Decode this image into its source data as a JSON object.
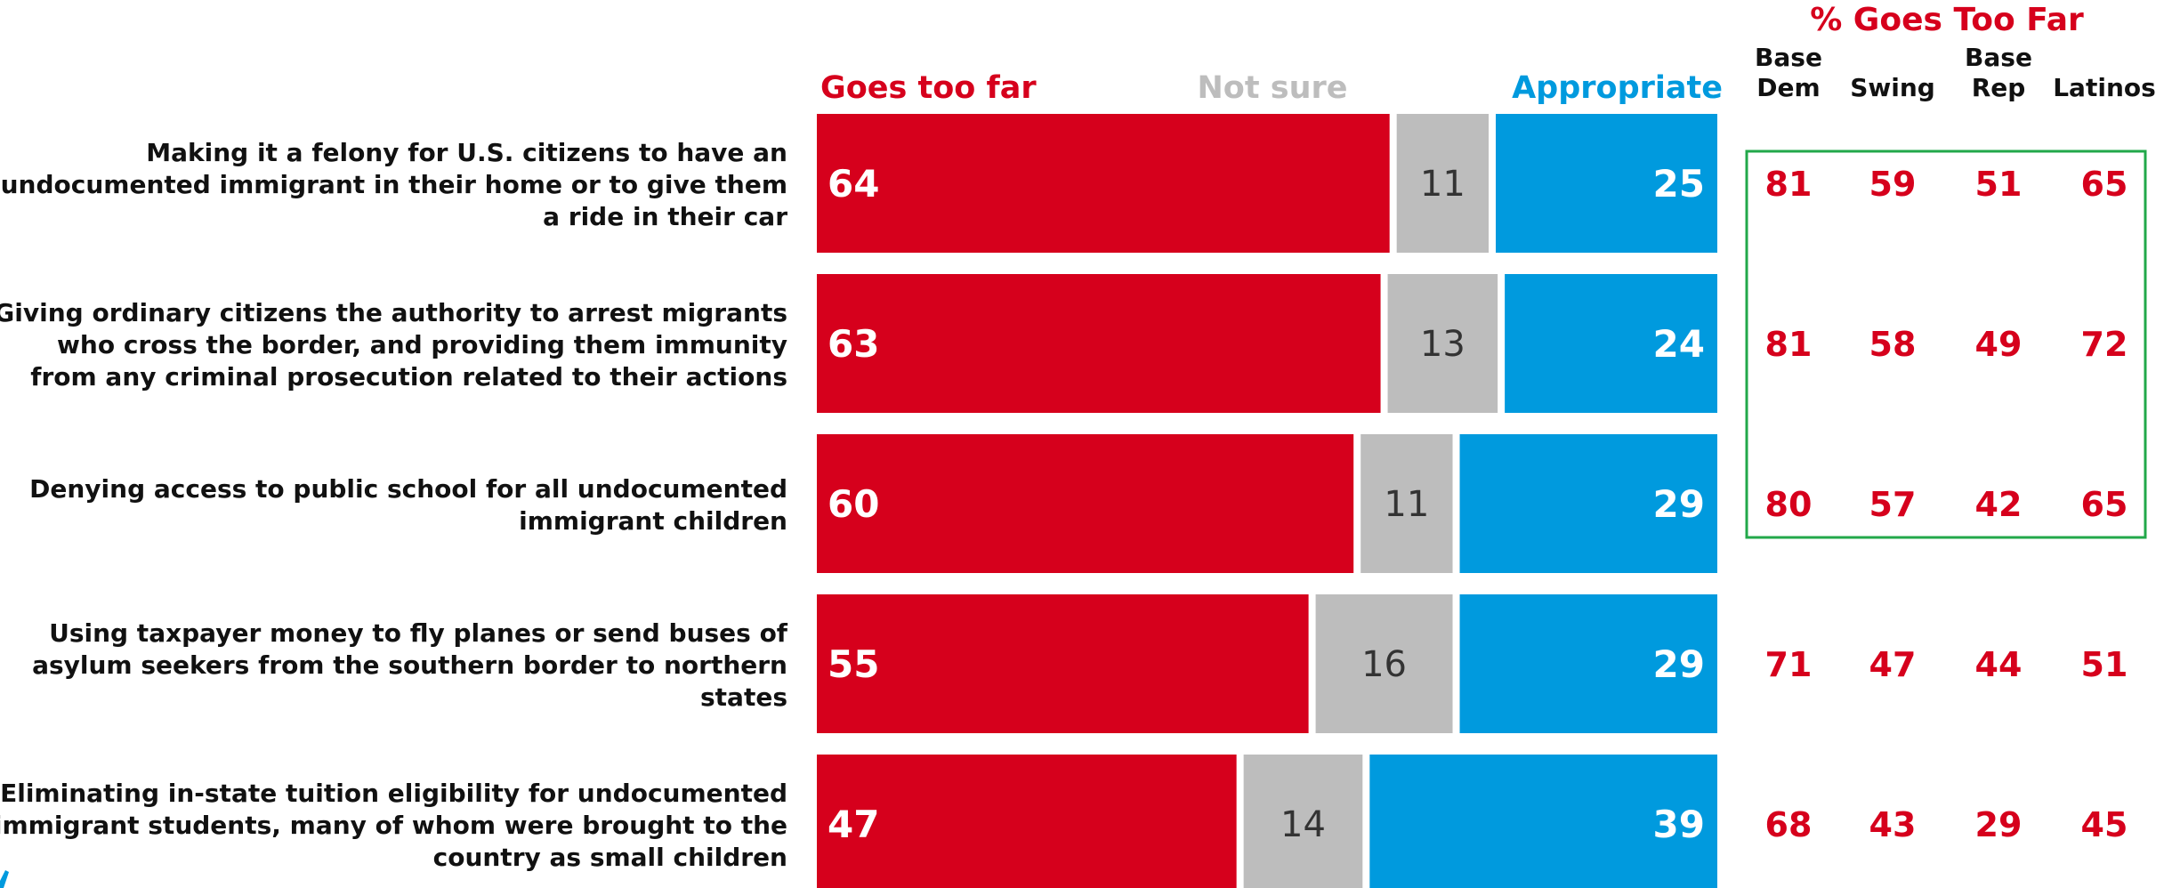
{
  "chart_data": {
    "type": "bar",
    "stacked": true,
    "orientation": "horizontal",
    "legend": [
      "Goes too far",
      "Not sure",
      "Appropriate"
    ],
    "categories": [
      "Making it a felony for U.S. citizens to have an undocumented immigrant in their home or to give them a ride in their car",
      "Giving ordinary citizens the authority to arrest migrants who cross the border, and providing them immunity from any criminal prosecution related to their actions",
      "Denying access to public school for all undocumented immigrant children",
      "Using taxpayer money to fly planes or send buses of asylum seekers from the southern border to northern states",
      "Eliminating in-state tuition eligibility for undocumented immigrant students, many of whom were brought to the country as small children"
    ],
    "category_lines": [
      [
        "Making it a felony for U.S. citizens to have an",
        "undocumented immigrant in their home or to give them",
        "a ride in their car"
      ],
      [
        "Giving ordinary citizens the authority to arrest migrants",
        "who cross the border, and providing them immunity",
        "from any criminal prosecution related to their actions"
      ],
      [
        "Denying access to public school for all undocumented",
        "immigrant children"
      ],
      [
        "Using taxpayer money to fly planes or send buses of",
        "asylum seekers from the southern border to northern",
        "states"
      ],
      [
        "Eliminating in-state tuition eligibility for undocumented",
        "immigrant students, many of whom were brought to the",
        "country as small children"
      ]
    ],
    "series": [
      {
        "name": "Goes too far",
        "color": "#d6001c",
        "values": [
          64,
          63,
          60,
          55,
          47
        ]
      },
      {
        "name": "Not sure",
        "color": "#bdbdbd",
        "values": [
          11,
          13,
          11,
          16,
          14
        ]
      },
      {
        "name": "Appropriate",
        "color": "#009ade",
        "values": [
          25,
          24,
          29,
          29,
          39
        ]
      }
    ],
    "xlim": [
      0,
      100
    ],
    "table": {
      "title": "% Goes Too Far",
      "columns": [
        [
          "Base",
          "Dem"
        ],
        [
          "Swing"
        ],
        [
          "Base",
          "Rep"
        ],
        [
          "Latinos"
        ]
      ],
      "rows": [
        [
          81,
          59,
          51,
          65
        ],
        [
          81,
          58,
          49,
          72
        ],
        [
          80,
          57,
          42,
          65
        ],
        [
          71,
          47,
          44,
          51
        ],
        [
          68,
          43,
          29,
          45
        ]
      ],
      "highlighted_rows": [
        0,
        1,
        2
      ],
      "highlight_color": "#22a84a",
      "value_color": "#d6001c"
    }
  }
}
